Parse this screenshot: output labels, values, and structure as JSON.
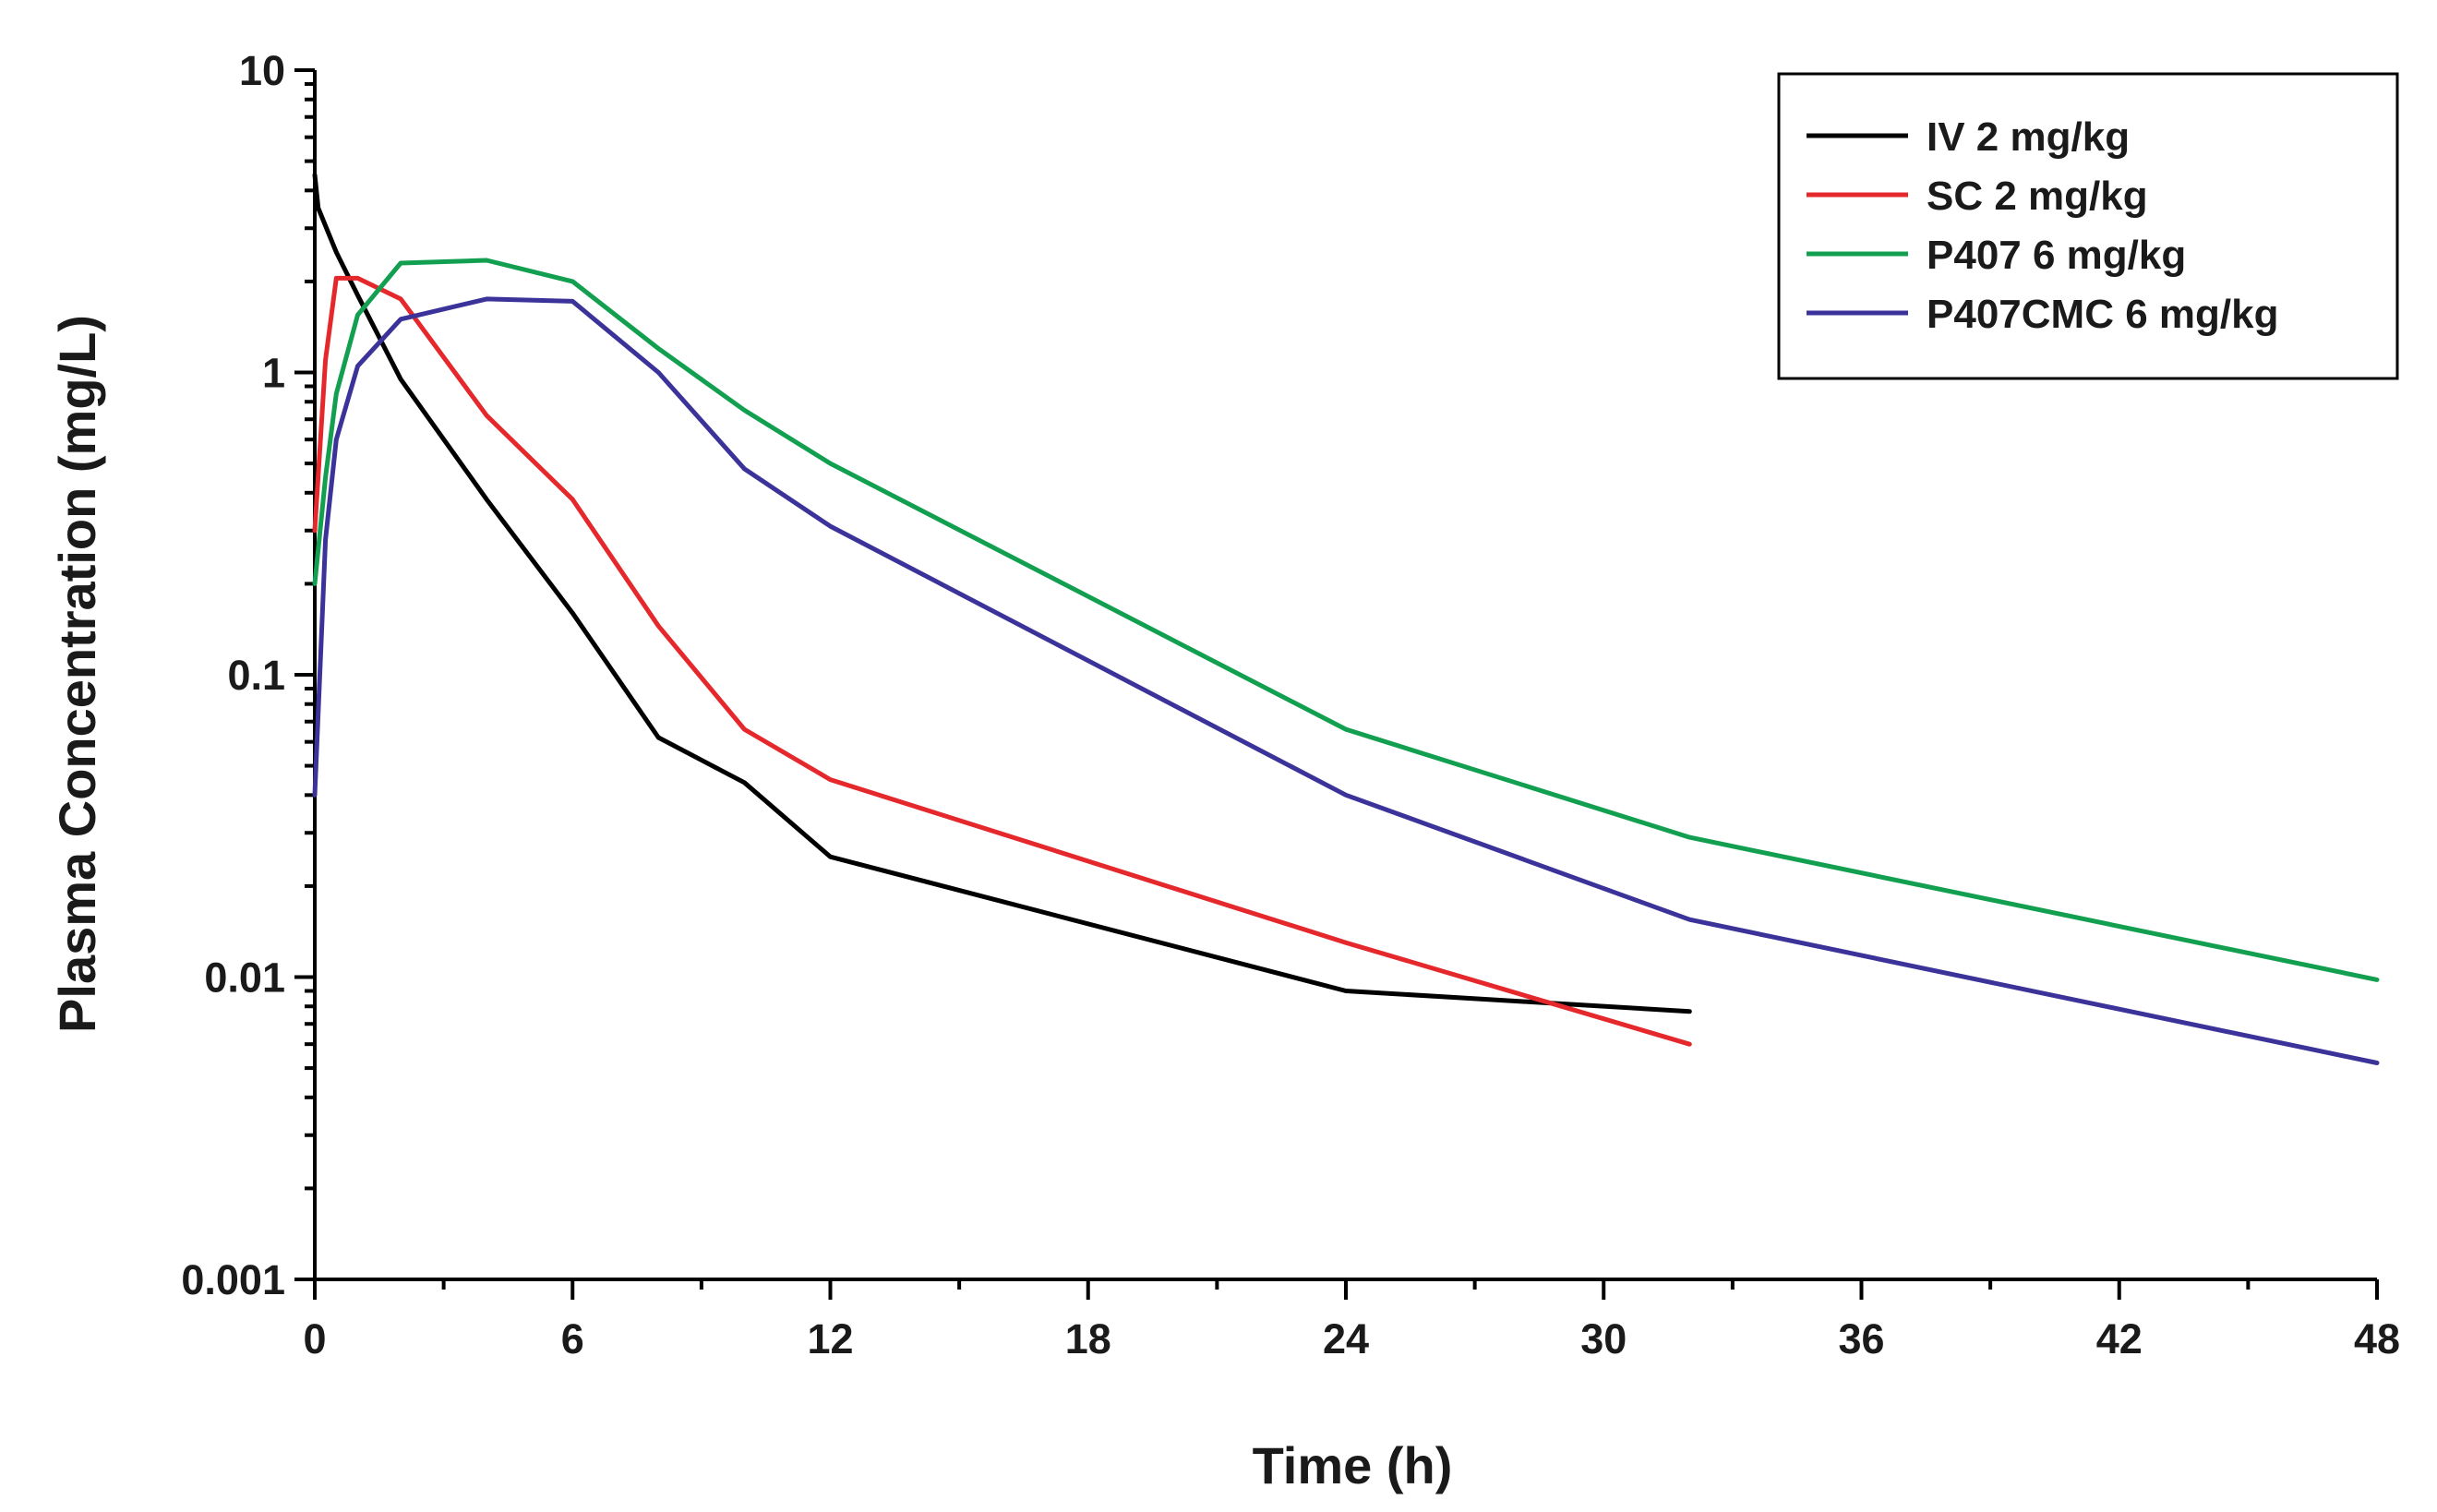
{
  "chart_data": {
    "type": "line",
    "title": "",
    "xlabel": "Time (h)",
    "ylabel": "Plasma Concentration (mg/L)",
    "xlim": [
      0,
      48
    ],
    "ylim": [
      0.001,
      10
    ],
    "yscale": "log",
    "grid": false,
    "legend_position": "top-right",
    "x_ticks": [
      0,
      6,
      12,
      18,
      24,
      30,
      36,
      42,
      48
    ],
    "x_tick_labels": [
      "0",
      "6",
      "12",
      "18",
      "24",
      "30",
      "36",
      "42",
      "48"
    ],
    "y_ticks": [
      0.001,
      0.01,
      0.1,
      1,
      10
    ],
    "y_tick_labels": [
      "0.001",
      "0.01",
      "0.1",
      "1",
      "10"
    ],
    "series": [
      {
        "name": "IV 2 mg/kg",
        "color": "#000000",
        "x": [
          0,
          0.08,
          0.5,
          1,
          2,
          4,
          6,
          8,
          10,
          12,
          24,
          32
        ],
        "y": [
          4.5,
          3.5,
          2.5,
          1.8,
          0.95,
          0.38,
          0.16,
          0.062,
          0.044,
          0.025,
          0.009,
          0.0077
        ]
      },
      {
        "name": "SC 2 mg/kg",
        "color": "#e5282c",
        "x": [
          0,
          0.25,
          0.5,
          1,
          2,
          4,
          6,
          8,
          10,
          12,
          24,
          32
        ],
        "y": [
          0.3,
          1.1,
          2.05,
          2.05,
          1.75,
          0.72,
          0.38,
          0.145,
          0.066,
          0.045,
          0.013,
          0.006
        ]
      },
      {
        "name": "P407 6 mg/kg",
        "color": "#12a050",
        "x": [
          0,
          0.25,
          0.5,
          1,
          2,
          4,
          6,
          8,
          10,
          12,
          24,
          32,
          48
        ],
        "y": [
          0.2,
          0.45,
          0.85,
          1.55,
          2.3,
          2.35,
          2.0,
          1.2,
          0.75,
          0.5,
          0.066,
          0.029,
          0.0098
        ]
      },
      {
        "name": "P407CMC 6 mg/kg",
        "color": "#3b3399",
        "x": [
          0,
          0.25,
          0.5,
          1,
          2,
          4,
          6,
          8,
          10,
          12,
          24,
          32,
          48
        ],
        "y": [
          0.04,
          0.28,
          0.6,
          1.05,
          1.5,
          1.75,
          1.72,
          1.0,
          0.48,
          0.31,
          0.04,
          0.0155,
          0.0052
        ]
      }
    ]
  }
}
